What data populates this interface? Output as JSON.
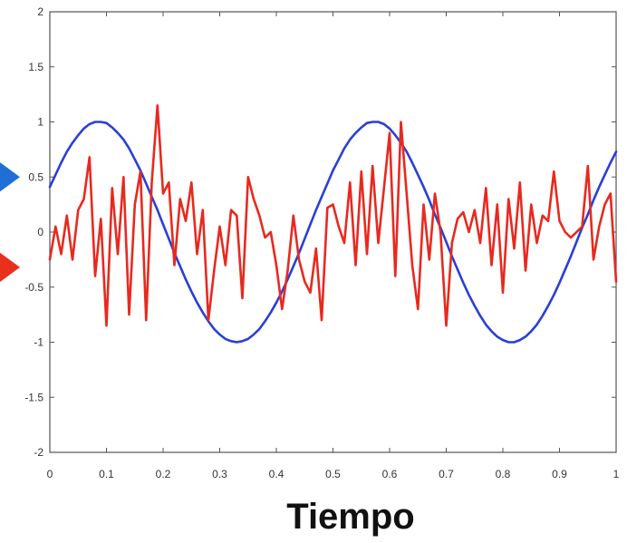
{
  "chart_data": {
    "type": "line",
    "title": "",
    "xlabel": "Tiempo",
    "ylabel": "",
    "xlim": [
      0,
      1
    ],
    "ylim": [
      -2,
      2
    ],
    "xticks": [
      0,
      0.1,
      0.2,
      0.3,
      0.4,
      0.5,
      0.6,
      0.7,
      0.8,
      0.9,
      1
    ],
    "xtick_labels": [
      "0",
      "0.1",
      "0.2",
      "0.3",
      "0.4",
      "0.5",
      "0.6",
      "0.7",
      "0.8",
      "0.9",
      "1"
    ],
    "yticks": [
      -2,
      -1.5,
      -1,
      -0.5,
      0,
      0.5,
      1,
      1.5,
      2
    ],
    "ytick_labels": [
      "-2",
      "-1.5",
      "-1",
      "-0.5",
      "0",
      "0.5",
      "1",
      "1.5",
      "2"
    ],
    "grid": false,
    "legend": "none",
    "series": [
      {
        "color": "#2a3fd6",
        "x": [
          0,
          0.01,
          0.02,
          0.03,
          0.04,
          0.05,
          0.06,
          0.07,
          0.08,
          0.09,
          0.1,
          0.11,
          0.12,
          0.13,
          0.14,
          0.15,
          0.16,
          0.17,
          0.18,
          0.19,
          0.2,
          0.21,
          0.22,
          0.23,
          0.24,
          0.25,
          0.26,
          0.27,
          0.28,
          0.29,
          0.3,
          0.31,
          0.32,
          0.33,
          0.34,
          0.35,
          0.36,
          0.37,
          0.38,
          0.39,
          0.4,
          0.41,
          0.42,
          0.43,
          0.44,
          0.45,
          0.46,
          0.47,
          0.48,
          0.49,
          0.5,
          0.51,
          0.52,
          0.53,
          0.54,
          0.55,
          0.56,
          0.57,
          0.58,
          0.59,
          0.6,
          0.61,
          0.62,
          0.63,
          0.64,
          0.65,
          0.66,
          0.67,
          0.68,
          0.69,
          0.7,
          0.71,
          0.72,
          0.73,
          0.74,
          0.75,
          0.76,
          0.77,
          0.78,
          0.79,
          0.8,
          0.81,
          0.82,
          0.83,
          0.84,
          0.85,
          0.86,
          0.87,
          0.88,
          0.89,
          0.9,
          0.91,
          0.92,
          0.93,
          0.94,
          0.95,
          0.96,
          0.97,
          0.98,
          0.99,
          1.0
        ],
        "y": [
          0.41,
          0.52,
          0.63,
          0.73,
          0.81,
          0.88,
          0.94,
          0.98,
          1.0,
          1.0,
          0.99,
          0.95,
          0.9,
          0.84,
          0.76,
          0.66,
          0.56,
          0.44,
          0.32,
          0.2,
          0.07,
          -0.06,
          -0.19,
          -0.31,
          -0.43,
          -0.54,
          -0.64,
          -0.73,
          -0.81,
          -0.88,
          -0.93,
          -0.97,
          -0.99,
          -1.0,
          -0.99,
          -0.97,
          -0.93,
          -0.88,
          -0.81,
          -0.73,
          -0.64,
          -0.54,
          -0.43,
          -0.31,
          -0.19,
          -0.06,
          0.07,
          0.2,
          0.32,
          0.44,
          0.56,
          0.66,
          0.76,
          0.84,
          0.9,
          0.95,
          0.99,
          1.0,
          1.0,
          0.98,
          0.94,
          0.88,
          0.81,
          0.73,
          0.63,
          0.52,
          0.41,
          0.29,
          0.16,
          0.04,
          -0.09,
          -0.22,
          -0.34,
          -0.46,
          -0.57,
          -0.67,
          -0.76,
          -0.84,
          -0.9,
          -0.95,
          -0.98,
          -1.0,
          -1.0,
          -0.98,
          -0.95,
          -0.9,
          -0.84,
          -0.76,
          -0.67,
          -0.57,
          -0.46,
          -0.34,
          -0.22,
          -0.09,
          0.04,
          0.16,
          0.29,
          0.41,
          0.52,
          0.63,
          0.73
        ]
      },
      {
        "color": "#e8291f",
        "x": [
          0,
          0.01,
          0.02,
          0.03,
          0.04,
          0.05,
          0.06,
          0.07,
          0.08,
          0.09,
          0.1,
          0.11,
          0.12,
          0.13,
          0.14,
          0.15,
          0.16,
          0.17,
          0.18,
          0.19,
          0.2,
          0.21,
          0.22,
          0.23,
          0.24,
          0.25,
          0.26,
          0.27,
          0.28,
          0.29,
          0.3,
          0.31,
          0.32,
          0.33,
          0.34,
          0.35,
          0.36,
          0.37,
          0.38,
          0.39,
          0.4,
          0.41,
          0.42,
          0.43,
          0.44,
          0.45,
          0.46,
          0.47,
          0.48,
          0.49,
          0.5,
          0.51,
          0.52,
          0.53,
          0.54,
          0.55,
          0.56,
          0.57,
          0.58,
          0.59,
          0.6,
          0.61,
          0.62,
          0.63,
          0.64,
          0.65,
          0.66,
          0.67,
          0.68,
          0.69,
          0.7,
          0.71,
          0.72,
          0.73,
          0.74,
          0.75,
          0.76,
          0.77,
          0.78,
          0.79,
          0.8,
          0.81,
          0.82,
          0.83,
          0.84,
          0.85,
          0.86,
          0.87,
          0.88,
          0.89,
          0.9,
          0.91,
          0.92,
          0.93,
          0.94,
          0.95,
          0.96,
          0.97,
          0.98,
          0.99,
          1.0
        ],
        "y": [
          -0.25,
          0.05,
          -0.2,
          0.15,
          -0.25,
          0.2,
          0.3,
          0.68,
          -0.4,
          0.12,
          -0.85,
          0.4,
          -0.2,
          0.5,
          -0.75,
          0.25,
          0.55,
          -0.8,
          0.45,
          1.15,
          0.35,
          0.45,
          -0.3,
          0.3,
          0.1,
          0.45,
          -0.2,
          0.2,
          -0.8,
          -0.35,
          0.05,
          -0.3,
          0.2,
          0.15,
          -0.6,
          0.5,
          0.3,
          0.15,
          -0.05,
          0.0,
          -0.3,
          -0.7,
          -0.35,
          0.15,
          -0.25,
          -0.45,
          -0.55,
          -0.15,
          -0.8,
          0.22,
          0.25,
          0.05,
          -0.1,
          0.45,
          -0.3,
          0.55,
          -0.2,
          0.6,
          -0.1,
          0.4,
          0.9,
          -0.4,
          1.0,
          0.35,
          -0.3,
          -0.7,
          0.25,
          -0.25,
          0.35,
          0.0,
          -0.85,
          -0.1,
          0.12,
          0.18,
          0.0,
          0.2,
          -0.1,
          0.4,
          -0.3,
          0.25,
          -0.55,
          0.3,
          -0.15,
          0.45,
          -0.35,
          0.25,
          -0.1,
          0.15,
          0.1,
          0.55,
          0.1,
          0.0,
          -0.05,
          0.0,
          0.05,
          0.6,
          -0.25,
          0.05,
          0.25,
          0.35,
          -0.45
        ]
      }
    ],
    "markers": [
      {
        "color": "#1f6fd6",
        "y": 0.5
      },
      {
        "color": "#e8301c",
        "y": -0.32
      }
    ]
  }
}
